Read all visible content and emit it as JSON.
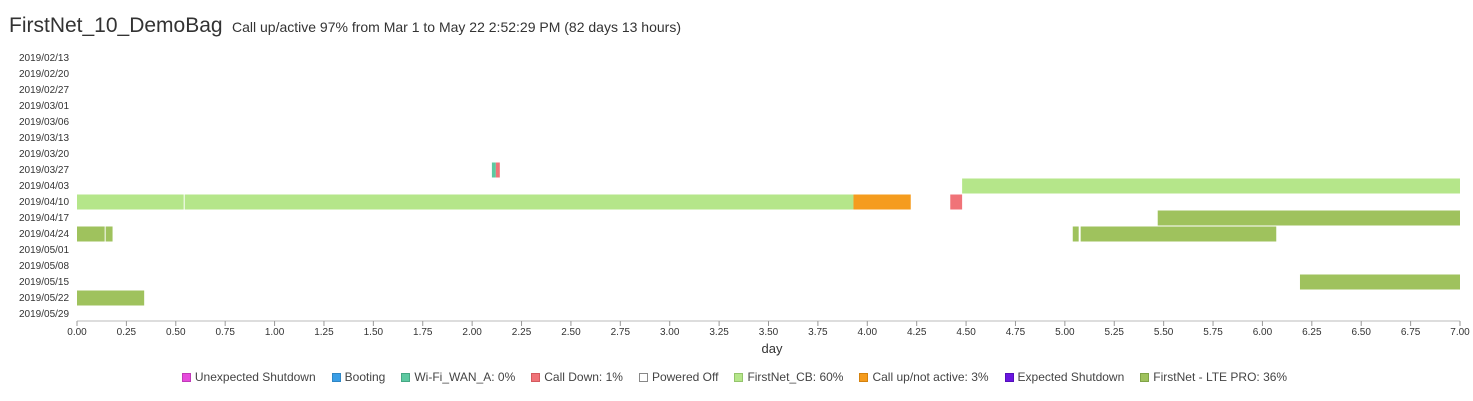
{
  "header": {
    "title": "FirstNet_10_DemoBag",
    "subtitle": "Call up/active 97% from Mar 1 to May 22 2:52:29 PM (82 days 13 hours)"
  },
  "legend": [
    {
      "label": "Unexpected Shutdown",
      "color": "#e64bdc",
      "border": "#c03ab8"
    },
    {
      "label": "Booting",
      "color": "#3a9ee6",
      "border": "#2f86c4"
    },
    {
      "label": "Wi-Fi_WAN_A: 0%",
      "color": "#5dc9a1",
      "border": "#46a884"
    },
    {
      "label": "Call Down: 1%",
      "color": "#f07378",
      "border": "#d45a5f"
    },
    {
      "label": "Powered Off",
      "color": "#ffffff",
      "border": "#888888"
    },
    {
      "label": "FirstNet_CB: 60%",
      "color": "#b5e68a",
      "border": "#94c46c"
    },
    {
      "label": "Call up/not active: 3%",
      "color": "#f59c1e",
      "border": "#d4820f"
    },
    {
      "label": "Expected Shutdown",
      "color": "#6a16e0",
      "border": "#5410ba"
    },
    {
      "label": "FirstNet - LTE PRO: 36%",
      "color": "#9fc25d",
      "border": "#80a447"
    }
  ],
  "chart_data": {
    "type": "timeline",
    "xlabel": "day",
    "xlim": [
      0,
      7
    ],
    "xticks": [
      "0.00",
      "0.25",
      "0.50",
      "0.75",
      "1.00",
      "1.25",
      "1.50",
      "1.75",
      "2.00",
      "2.25",
      "2.50",
      "2.75",
      "3.00",
      "3.25",
      "3.50",
      "3.75",
      "4.00",
      "4.25",
      "4.50",
      "4.75",
      "5.00",
      "5.25",
      "5.50",
      "5.75",
      "6.00",
      "6.25",
      "6.50",
      "6.75",
      "7.00"
    ],
    "rows": [
      "2019/02/13",
      "2019/02/20",
      "2019/02/27",
      "2019/03/01",
      "2019/03/06",
      "2019/03/13",
      "2019/03/20",
      "2019/03/27",
      "2019/04/03",
      "2019/04/10",
      "2019/04/17",
      "2019/04/24",
      "2019/05/01",
      "2019/05/08",
      "2019/05/15",
      "2019/05/22",
      "2019/05/29"
    ],
    "colors": {
      "FirstNet_CB": "#b5e68a",
      "FirstNet - LTE PRO": "#9fc25d",
      "Call up/not active": "#f59c1e",
      "Call Down": "#f07378",
      "Wi-Fi_WAN_A": "#5dc9a1"
    },
    "segments": [
      {
        "row": "2019/03/27",
        "start": 2.1,
        "end": 2.12,
        "state": "Wi-Fi_WAN_A"
      },
      {
        "row": "2019/03/27",
        "start": 2.12,
        "end": 2.14,
        "state": "Call Down"
      },
      {
        "row": "2019/04/03",
        "start": 4.48,
        "end": 7.0,
        "state": "FirstNet_CB"
      },
      {
        "row": "2019/04/10",
        "start": 0.0,
        "end": 0.54,
        "state": "FirstNet_CB"
      },
      {
        "row": "2019/04/10",
        "start": 0.545,
        "end": 3.93,
        "state": "FirstNet_CB"
      },
      {
        "row": "2019/04/10",
        "start": 3.93,
        "end": 4.22,
        "state": "Call up/not active"
      },
      {
        "row": "2019/04/10",
        "start": 4.42,
        "end": 4.48,
        "state": "Call Down"
      },
      {
        "row": "2019/04/17",
        "start": 5.47,
        "end": 7.0,
        "state": "FirstNet - LTE PRO"
      },
      {
        "row": "2019/04/24",
        "start": 0.0,
        "end": 0.14,
        "state": "FirstNet - LTE PRO"
      },
      {
        "row": "2019/04/24",
        "start": 0.145,
        "end": 0.18,
        "state": "FirstNet - LTE PRO"
      },
      {
        "row": "2019/04/24",
        "start": 5.04,
        "end": 5.07,
        "state": "FirstNet - LTE PRO"
      },
      {
        "row": "2019/04/24",
        "start": 5.08,
        "end": 6.07,
        "state": "FirstNet - LTE PRO"
      },
      {
        "row": "2019/05/15",
        "start": 6.19,
        "end": 7.0,
        "state": "FirstNet - LTE PRO"
      },
      {
        "row": "2019/05/22",
        "start": 0.0,
        "end": 0.34,
        "state": "FirstNet - LTE PRO"
      }
    ]
  }
}
